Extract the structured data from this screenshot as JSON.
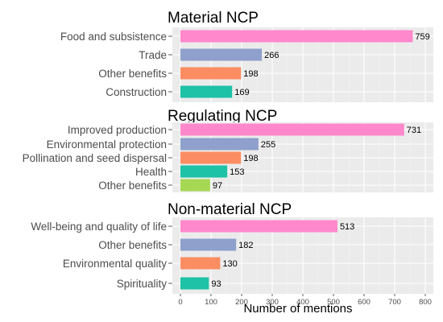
{
  "chart_data": {
    "type": "bar",
    "orientation": "horizontal",
    "xlabel": "Number of mentions",
    "xlim": [
      0,
      800
    ],
    "xticks": [
      0,
      100,
      200,
      300,
      400,
      500,
      600,
      700,
      800
    ],
    "grid": true,
    "legend": "none",
    "panels": [
      {
        "title": "Material NCP",
        "categories": [
          "Food and subsistence",
          "Trade",
          "Other benefits",
          "Construction"
        ],
        "values": [
          759,
          266,
          198,
          169
        ],
        "colors": [
          "#ff88cc",
          "#8ea0cb",
          "#fc8d62",
          "#1ec2a6"
        ]
      },
      {
        "title": "Regulating NCP",
        "categories": [
          "Improved production",
          "Environmental protection",
          "Pollination and seed dispersal",
          "Health",
          "Other benefits"
        ],
        "values": [
          731,
          255,
          198,
          153,
          97
        ],
        "colors": [
          "#ff88cc",
          "#8ea0cb",
          "#fc8d62",
          "#1ec2a6",
          "#a6d854"
        ]
      },
      {
        "title": "Non-material NCP",
        "categories": [
          "Well-being and quality of life",
          "Other benefits",
          "Environmental quality",
          "Spirituality"
        ],
        "values": [
          513,
          182,
          130,
          93
        ],
        "colors": [
          "#ff88cc",
          "#8ea0cb",
          "#fc8d62",
          "#1ec2a6"
        ]
      }
    ]
  }
}
